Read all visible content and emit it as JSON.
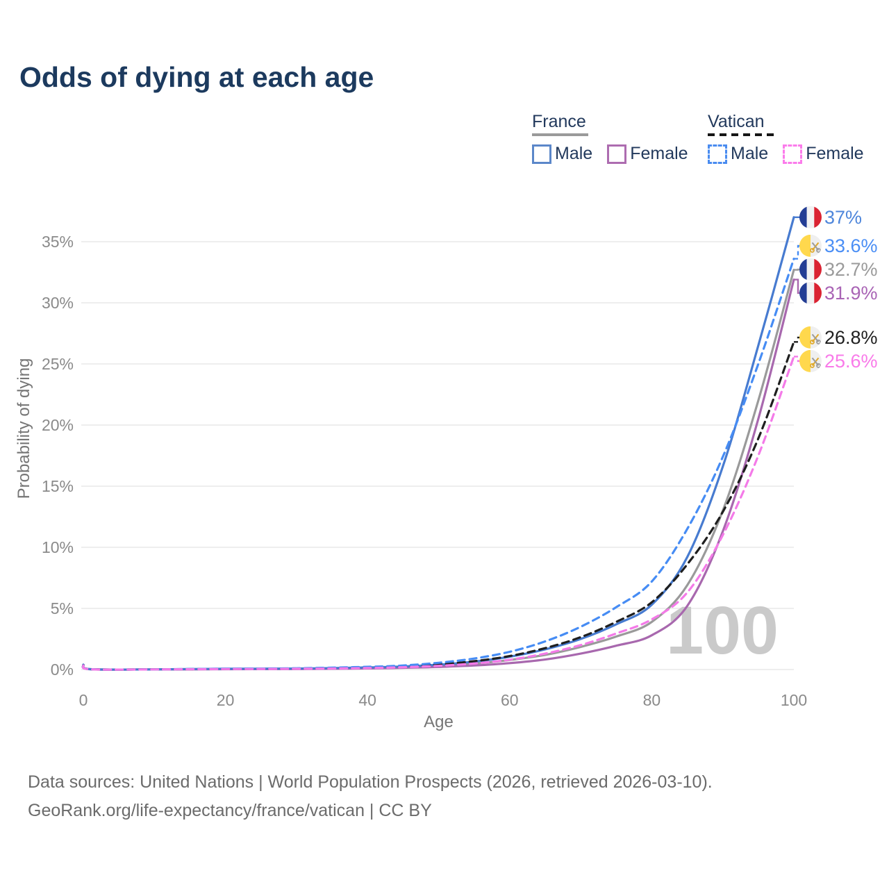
{
  "title": "Odds of dying at each age",
  "watermark": "100",
  "legend": {
    "groups": [
      {
        "name": "France",
        "line_style": "solid",
        "underline_color": "#9a9a9a",
        "items": [
          {
            "label": "Male",
            "color": "#5b87c9"
          },
          {
            "label": "Female",
            "color": "#ad6cb0"
          }
        ]
      },
      {
        "name": "Vatican",
        "line_style": "dashed",
        "underline_color": "#161616",
        "items": [
          {
            "label": "Male",
            "color": "#4a8cf0"
          },
          {
            "label": "Female",
            "color": "#fb7ceb"
          }
        ]
      }
    ]
  },
  "footer": {
    "line1": "Data sources: United Nations | World Population Prospects (2026, retrieved 2026-03-10).",
    "line2": "GeoRank.org/life-expectancy/france/vatican | CC BY"
  },
  "chart_data": {
    "type": "line",
    "title": "Odds of dying at each age",
    "xlabel": "Age",
    "ylabel": "Probability of dying",
    "xlim": [
      0,
      100
    ],
    "ylim": [
      0,
      37
    ],
    "x_ticks": [
      0,
      20,
      40,
      60,
      80,
      100
    ],
    "y_ticks": [
      0,
      5,
      10,
      15,
      20,
      25,
      30,
      35
    ],
    "y_tick_suffix": "%",
    "grid": "horizontal",
    "legend_position": "top-right",
    "age_watermark": "100",
    "x": [
      0,
      1,
      10,
      20,
      30,
      40,
      45,
      50,
      55,
      60,
      65,
      70,
      75,
      80,
      85,
      90,
      95,
      100
    ],
    "series": [
      {
        "name": "France Total",
        "country": "France",
        "sex": "all",
        "color": "#9a9a9a",
        "dash": false,
        "flag": "france",
        "end_label": "32.7%",
        "end_value": 32.7,
        "label_color": "#9a9a9a",
        "values": [
          0.38,
          0.03,
          0.01,
          0.04,
          0.06,
          0.13,
          0.19,
          0.3,
          0.48,
          0.78,
          1.2,
          1.85,
          2.7,
          3.9,
          6.9,
          13.0,
          22.0,
          32.7
        ]
      },
      {
        "name": "France Female",
        "country": "France",
        "sex": "female",
        "color": "#a868ae",
        "dash": false,
        "flag": "france",
        "end_label": "31.9%",
        "end_value": 31.9,
        "label_color": "#a964b5",
        "values": [
          0.35,
          0.02,
          0.01,
          0.03,
          0.04,
          0.09,
          0.14,
          0.21,
          0.33,
          0.52,
          0.82,
          1.3,
          1.95,
          2.8,
          5.2,
          11.3,
          20.5,
          31.9
        ]
      },
      {
        "name": "France Male",
        "country": "France",
        "sex": "male",
        "color": "#477bd0",
        "dash": false,
        "flag": "france",
        "end_label": "37%",
        "end_value": 37.0,
        "label_color": "#4e86db",
        "values": [
          0.4,
          0.03,
          0.01,
          0.06,
          0.08,
          0.17,
          0.25,
          0.4,
          0.65,
          1.05,
          1.65,
          2.5,
          3.7,
          5.3,
          9.2,
          16.6,
          26.5,
          37.0
        ]
      },
      {
        "name": "Vatican Total",
        "country": "Vatican",
        "sex": "all",
        "color": "#1f1f1f",
        "dash": true,
        "flag": "vatican",
        "end_label": "26.8%",
        "end_value": 26.8,
        "label_color": "#1f1f1f",
        "values": [
          0.36,
          0.03,
          0.01,
          0.05,
          0.08,
          0.17,
          0.26,
          0.42,
          0.68,
          1.1,
          1.75,
          2.65,
          3.9,
          5.5,
          8.6,
          12.9,
          18.9,
          26.8
        ]
      },
      {
        "name": "Vatican Male",
        "country": "Vatican",
        "sex": "male",
        "color": "#468cf4",
        "dash": true,
        "flag": "vatican",
        "end_label": "33.6%",
        "end_value": 33.6,
        "label_color": "#4a8ef5",
        "values": [
          0.35,
          0.03,
          0.01,
          0.07,
          0.1,
          0.22,
          0.33,
          0.55,
          0.9,
          1.45,
          2.3,
          3.5,
          5.1,
          7.2,
          11.5,
          17.4,
          25.0,
          33.6
        ]
      },
      {
        "name": "Vatican Female",
        "country": "Vatican",
        "sex": "female",
        "color": "#f47ae8",
        "dash": true,
        "flag": "vatican",
        "end_label": "25.6%",
        "end_value": 25.6,
        "label_color": "#f97ae9",
        "values": [
          0.33,
          0.02,
          0.01,
          0.04,
          0.06,
          0.12,
          0.19,
          0.3,
          0.49,
          0.8,
          1.3,
          2.0,
          2.95,
          4.1,
          6.3,
          11.0,
          17.5,
          25.6
        ]
      }
    ],
    "flag_colors": {
      "france_blue": "#233d94",
      "france_white": "#f2f2f2",
      "france_red": "#da2332",
      "vatican_yellow": "#ffd84d",
      "vatican_white": "#efefef",
      "vatican_key_gold": "#dfa92c",
      "vatican_key_gray": "#9c9c9c"
    }
  }
}
